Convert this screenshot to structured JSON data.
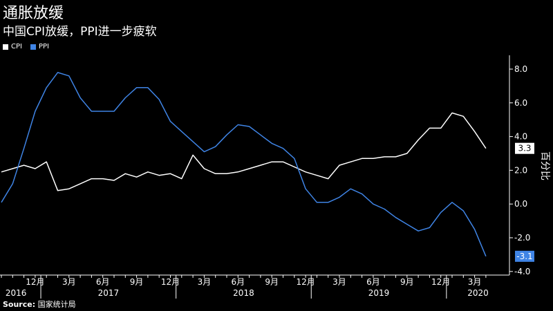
{
  "title": "通胀放缓",
  "subtitle": "中国CPI放缓，PPI进一步疲软",
  "source_label": "Source:",
  "source_text": " 国家统计局",
  "chart_data": {
    "type": "line",
    "ylabel": "百分比",
    "ylim": [
      -4.0,
      9.0
    ],
    "yticks": [
      "8.0",
      "6.0",
      "4.0",
      "2.0",
      "0.0",
      "-2.0",
      "-4.0"
    ],
    "ytick_values": [
      8,
      6,
      4,
      2,
      0,
      -2,
      -4
    ],
    "month_ticks": [
      {
        "label": "12月",
        "index": 3
      },
      {
        "label": "3月",
        "index": 6
      },
      {
        "label": "6月",
        "index": 9
      },
      {
        "label": "9月",
        "index": 12
      },
      {
        "label": "12月",
        "index": 15
      },
      {
        "label": "3月",
        "index": 18
      },
      {
        "label": "6月",
        "index": 21
      },
      {
        "label": "9月",
        "index": 24
      },
      {
        "label": "12月",
        "index": 27
      },
      {
        "label": "3月",
        "index": 30
      },
      {
        "label": "6月",
        "index": 33
      },
      {
        "label": "9月",
        "index": 36
      },
      {
        "label": "12月",
        "index": 39
      },
      {
        "label": "3月",
        "index": 42
      }
    ],
    "year_labels": [
      {
        "label": "2016",
        "index": 1.3
      },
      {
        "label": "2017",
        "index": 9.5
      },
      {
        "label": "2018",
        "index": 21.5
      },
      {
        "label": "2019",
        "index": 33.5
      },
      {
        "label": "2020",
        "index": 42.3
      }
    ],
    "year_dividers": [
      3.5,
      15.5,
      27.5,
      39.5
    ],
    "series": [
      {
        "name": "CPI",
        "color": "#ffffff",
        "end_label": "3.3",
        "values": [
          1.9,
          2.1,
          2.3,
          2.1,
          2.5,
          0.8,
          0.9,
          1.2,
          1.5,
          1.5,
          1.4,
          1.8,
          1.6,
          1.9,
          1.7,
          1.8,
          1.5,
          2.9,
          2.1,
          1.8,
          1.8,
          1.9,
          2.1,
          2.3,
          2.5,
          2.5,
          2.2,
          1.9,
          1.7,
          1.5,
          2.3,
          2.5,
          2.7,
          2.7,
          2.8,
          2.8,
          3.0,
          3.8,
          4.5,
          4.5,
          5.4,
          5.2,
          4.3,
          3.3
        ]
      },
      {
        "name": "PPI",
        "color": "#3f84e5",
        "end_label": "-3.1",
        "values": [
          0.1,
          1.2,
          3.3,
          5.5,
          6.9,
          7.8,
          7.6,
          6.3,
          5.5,
          5.5,
          5.5,
          6.3,
          6.9,
          6.9,
          6.2,
          4.9,
          4.3,
          3.7,
          3.1,
          3.4,
          4.1,
          4.7,
          4.6,
          4.1,
          3.6,
          3.3,
          2.7,
          0.9,
          0.1,
          0.1,
          0.4,
          0.9,
          0.6,
          0.0,
          -0.3,
          -0.8,
          -1.2,
          -1.6,
          -1.4,
          -0.5,
          0.1,
          -0.4,
          -1.5,
          -3.1
        ]
      }
    ]
  }
}
